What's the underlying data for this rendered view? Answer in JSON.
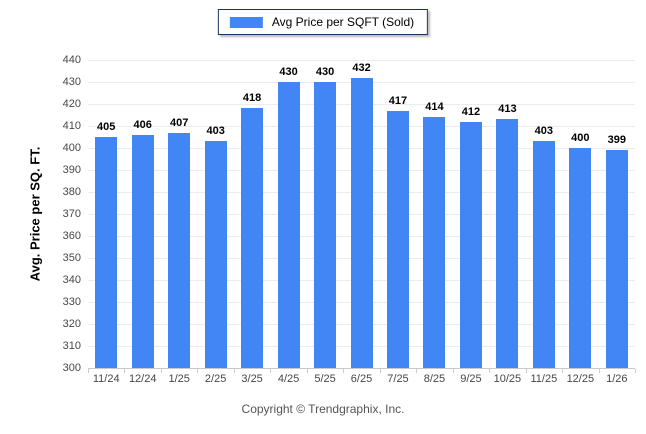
{
  "chart_data": {
    "type": "bar",
    "legend": "Avg Price per SQFT (Sold)",
    "categories": [
      "11/24",
      "12/24",
      "1/25",
      "2/25",
      "3/25",
      "4/25",
      "5/25",
      "6/25",
      "7/25",
      "8/25",
      "9/25",
      "10/25",
      "11/25",
      "12/25",
      "1/26"
    ],
    "values": [
      405,
      406,
      407,
      403,
      418,
      430,
      430,
      432,
      417,
      414,
      412,
      413,
      403,
      400,
      399
    ],
    "ylabel": "Avg. Price per SQ. FT.",
    "ylim": [
      300,
      440
    ],
    "ytick_step": 10,
    "grid": true,
    "legend_position": "top-center",
    "bar_color": "#4285f4",
    "gridline_color": "#ececec",
    "axis_line_color": "#c9c9c9",
    "tick_label_color": "#474747"
  },
  "footer": {
    "copyright": "Copyright © Trendgraphix, Inc."
  }
}
